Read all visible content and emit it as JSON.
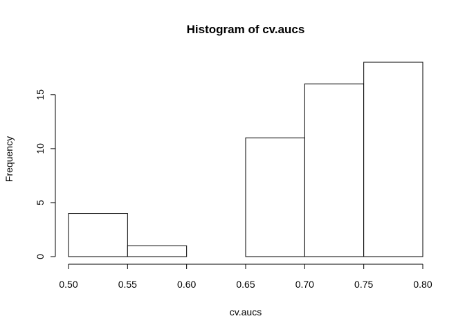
{
  "chart_data": {
    "type": "bar",
    "title": "Histogram of cv.aucs",
    "xlabel": "cv.aucs",
    "ylabel": "Frequency",
    "bins": [
      {
        "from": 0.5,
        "to": 0.55,
        "count": 4
      },
      {
        "from": 0.55,
        "to": 0.6,
        "count": 1
      },
      {
        "from": 0.6,
        "to": 0.65,
        "count": 0
      },
      {
        "from": 0.65,
        "to": 0.7,
        "count": 11
      },
      {
        "from": 0.7,
        "to": 0.75,
        "count": 16
      },
      {
        "from": 0.75,
        "to": 0.8,
        "count": 18
      }
    ],
    "xlim": [
      0.5,
      0.8
    ],
    "ylim": [
      0,
      18
    ],
    "x_ticks": [
      "0.50",
      "0.55",
      "0.60",
      "0.65",
      "0.70",
      "0.75",
      "0.80"
    ],
    "y_ticks": [
      "0",
      "5",
      "10",
      "15"
    ],
    "grid": false,
    "legend": "none",
    "colors": {
      "bar_fill": "#ffffff",
      "bar_stroke": "#000000",
      "background": "#ffffff"
    }
  }
}
